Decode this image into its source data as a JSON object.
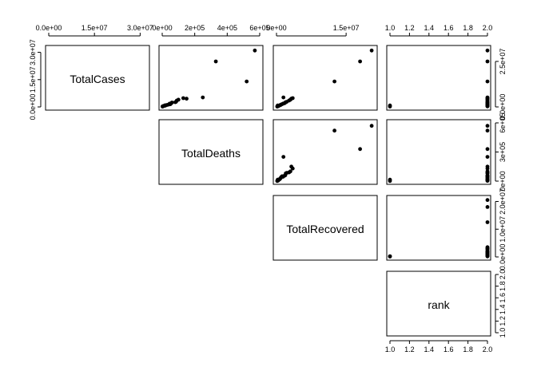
{
  "chart_data": {
    "type": "scatter",
    "title": "",
    "variables": [
      "TotalCases",
      "TotalDeaths",
      "TotalRecovered",
      "rank"
    ],
    "layout": "upper-triangle",
    "panel_order": [
      [
        "diag",
        "cases_deaths",
        "cases_recovered",
        "cases_rank"
      ],
      [
        null,
        "diag",
        "deaths_recovered",
        "deaths_rank"
      ],
      [
        null,
        null,
        "diag",
        "recovered_rank"
      ],
      [
        null,
        null,
        null,
        "diag"
      ]
    ],
    "ranges": {
      "TotalCases": [
        0,
        32000000
      ],
      "TotalDeaths": [
        0,
        600000
      ],
      "TotalRecovered": [
        0,
        21000000
      ],
      "rank": [
        1,
        2
      ]
    },
    "ticks": {
      "TotalCases": [
        {
          "value": 0,
          "label": "0.0e+00"
        },
        {
          "value": 15000000,
          "label": "1.5e+07"
        },
        {
          "value": 30000000,
          "label": "3.0e+07"
        }
      ],
      "TotalCases_right": [
        {
          "value": 0,
          "label": "0.0e+00"
        },
        {
          "value": 25000000,
          "label": "2.5e+07"
        }
      ],
      "TotalDeaths": [
        {
          "value": 0,
          "label": "0e+00"
        },
        {
          "value": 200000,
          "label": "2e+05"
        },
        {
          "value": 400000,
          "label": "4e+05"
        },
        {
          "value": 600000,
          "label": "6e+05"
        }
      ],
      "TotalDeaths_right": [
        {
          "value": 0,
          "label": "0e+00"
        },
        {
          "value": 300000,
          "label": "3e+05"
        },
        {
          "value": 600000,
          "label": "6e+05"
        }
      ],
      "TotalRecovered": [
        {
          "value": 0,
          "label": "0e+00"
        },
        {
          "value": 15000000,
          "label": "1.5e+07"
        }
      ],
      "TotalRecovered_right": [
        {
          "value": 0,
          "label": "0.0e+00"
        },
        {
          "value": 10000000,
          "label": "1.0e+07"
        },
        {
          "value": 20000000,
          "label": "2.0e+07"
        }
      ],
      "rank": [
        {
          "value": 1.0,
          "label": "1.0"
        },
        {
          "value": 1.2,
          "label": "1.2"
        },
        {
          "value": 1.4,
          "label": "1.4"
        },
        {
          "value": 1.6,
          "label": "1.6"
        },
        {
          "value": 1.8,
          "label": "1.8"
        },
        {
          "value": 2.0,
          "label": "2.0"
        }
      ]
    },
    "points": [
      {
        "TotalCases": 31000000,
        "TotalDeaths": 570000,
        "TotalRecovered": 20500000,
        "rank": 2
      },
      {
        "TotalCases": 25000000,
        "TotalDeaths": 330000,
        "TotalRecovered": 18000000,
        "rank": 2
      },
      {
        "TotalCases": 14000000,
        "TotalDeaths": 520000,
        "TotalRecovered": 12500000,
        "rank": 2
      },
      {
        "TotalCases": 4000000,
        "TotalDeaths": 100000,
        "TotalRecovered": 3000000,
        "rank": 2
      },
      {
        "TotalCases": 4500000,
        "TotalDeaths": 150000,
        "TotalRecovered": 3200000,
        "rank": 2
      },
      {
        "TotalCases": 4800000,
        "TotalDeaths": 130000,
        "TotalRecovered": 3500000,
        "rank": 2
      },
      {
        "TotalCases": 3500000,
        "TotalDeaths": 90000,
        "TotalRecovered": 2700000,
        "rank": 2
      },
      {
        "TotalCases": 5200000,
        "TotalDeaths": 250000,
        "TotalRecovered": 1500000,
        "rank": 2
      },
      {
        "TotalCases": 2800000,
        "TotalDeaths": 85000,
        "TotalRecovered": 2200000,
        "rank": 2
      },
      {
        "TotalCases": 2600000,
        "TotalDeaths": 80000,
        "TotalRecovered": 2000000,
        "rank": 2
      },
      {
        "TotalCases": 2400000,
        "TotalDeaths": 60000,
        "TotalRecovered": 1900000,
        "rank": 2
      },
      {
        "TotalCases": 2000000,
        "TotalDeaths": 55000,
        "TotalRecovered": 1700000,
        "rank": 2
      },
      {
        "TotalCases": 1800000,
        "TotalDeaths": 45000,
        "TotalRecovered": 1400000,
        "rank": 2
      },
      {
        "TotalCases": 1500000,
        "TotalDeaths": 50000,
        "TotalRecovered": 1200000,
        "rank": 2
      },
      {
        "TotalCases": 1300000,
        "TotalDeaths": 40000,
        "TotalRecovered": 1000000,
        "rank": 2
      },
      {
        "TotalCases": 1100000,
        "TotalDeaths": 30000,
        "TotalRecovered": 900000,
        "rank": 2
      },
      {
        "TotalCases": 900000,
        "TotalDeaths": 20000,
        "TotalRecovered": 700000,
        "rank": 2
      },
      {
        "TotalCases": 700000,
        "TotalDeaths": 18000,
        "TotalRecovered": 550000,
        "rank": 2
      },
      {
        "TotalCases": 600000,
        "TotalDeaths": 12000,
        "TotalRecovered": 450000,
        "rank": 2
      },
      {
        "TotalCases": 500000,
        "TotalDeaths": 8000,
        "TotalRecovered": 380000,
        "rank": 2
      },
      {
        "TotalCases": 400000,
        "TotalDeaths": 5000,
        "TotalRecovered": 300000,
        "rank": 2
      },
      {
        "TotalCases": 300000,
        "TotalDeaths": 3000,
        "TotalRecovered": 200000,
        "rank": 2
      },
      {
        "TotalCases": 800000,
        "TotalDeaths": 15000,
        "TotalRecovered": 250000,
        "rank": 1
      },
      {
        "TotalCases": 200000,
        "TotalDeaths": 2000,
        "TotalRecovered": 150000,
        "rank": 1
      }
    ]
  }
}
